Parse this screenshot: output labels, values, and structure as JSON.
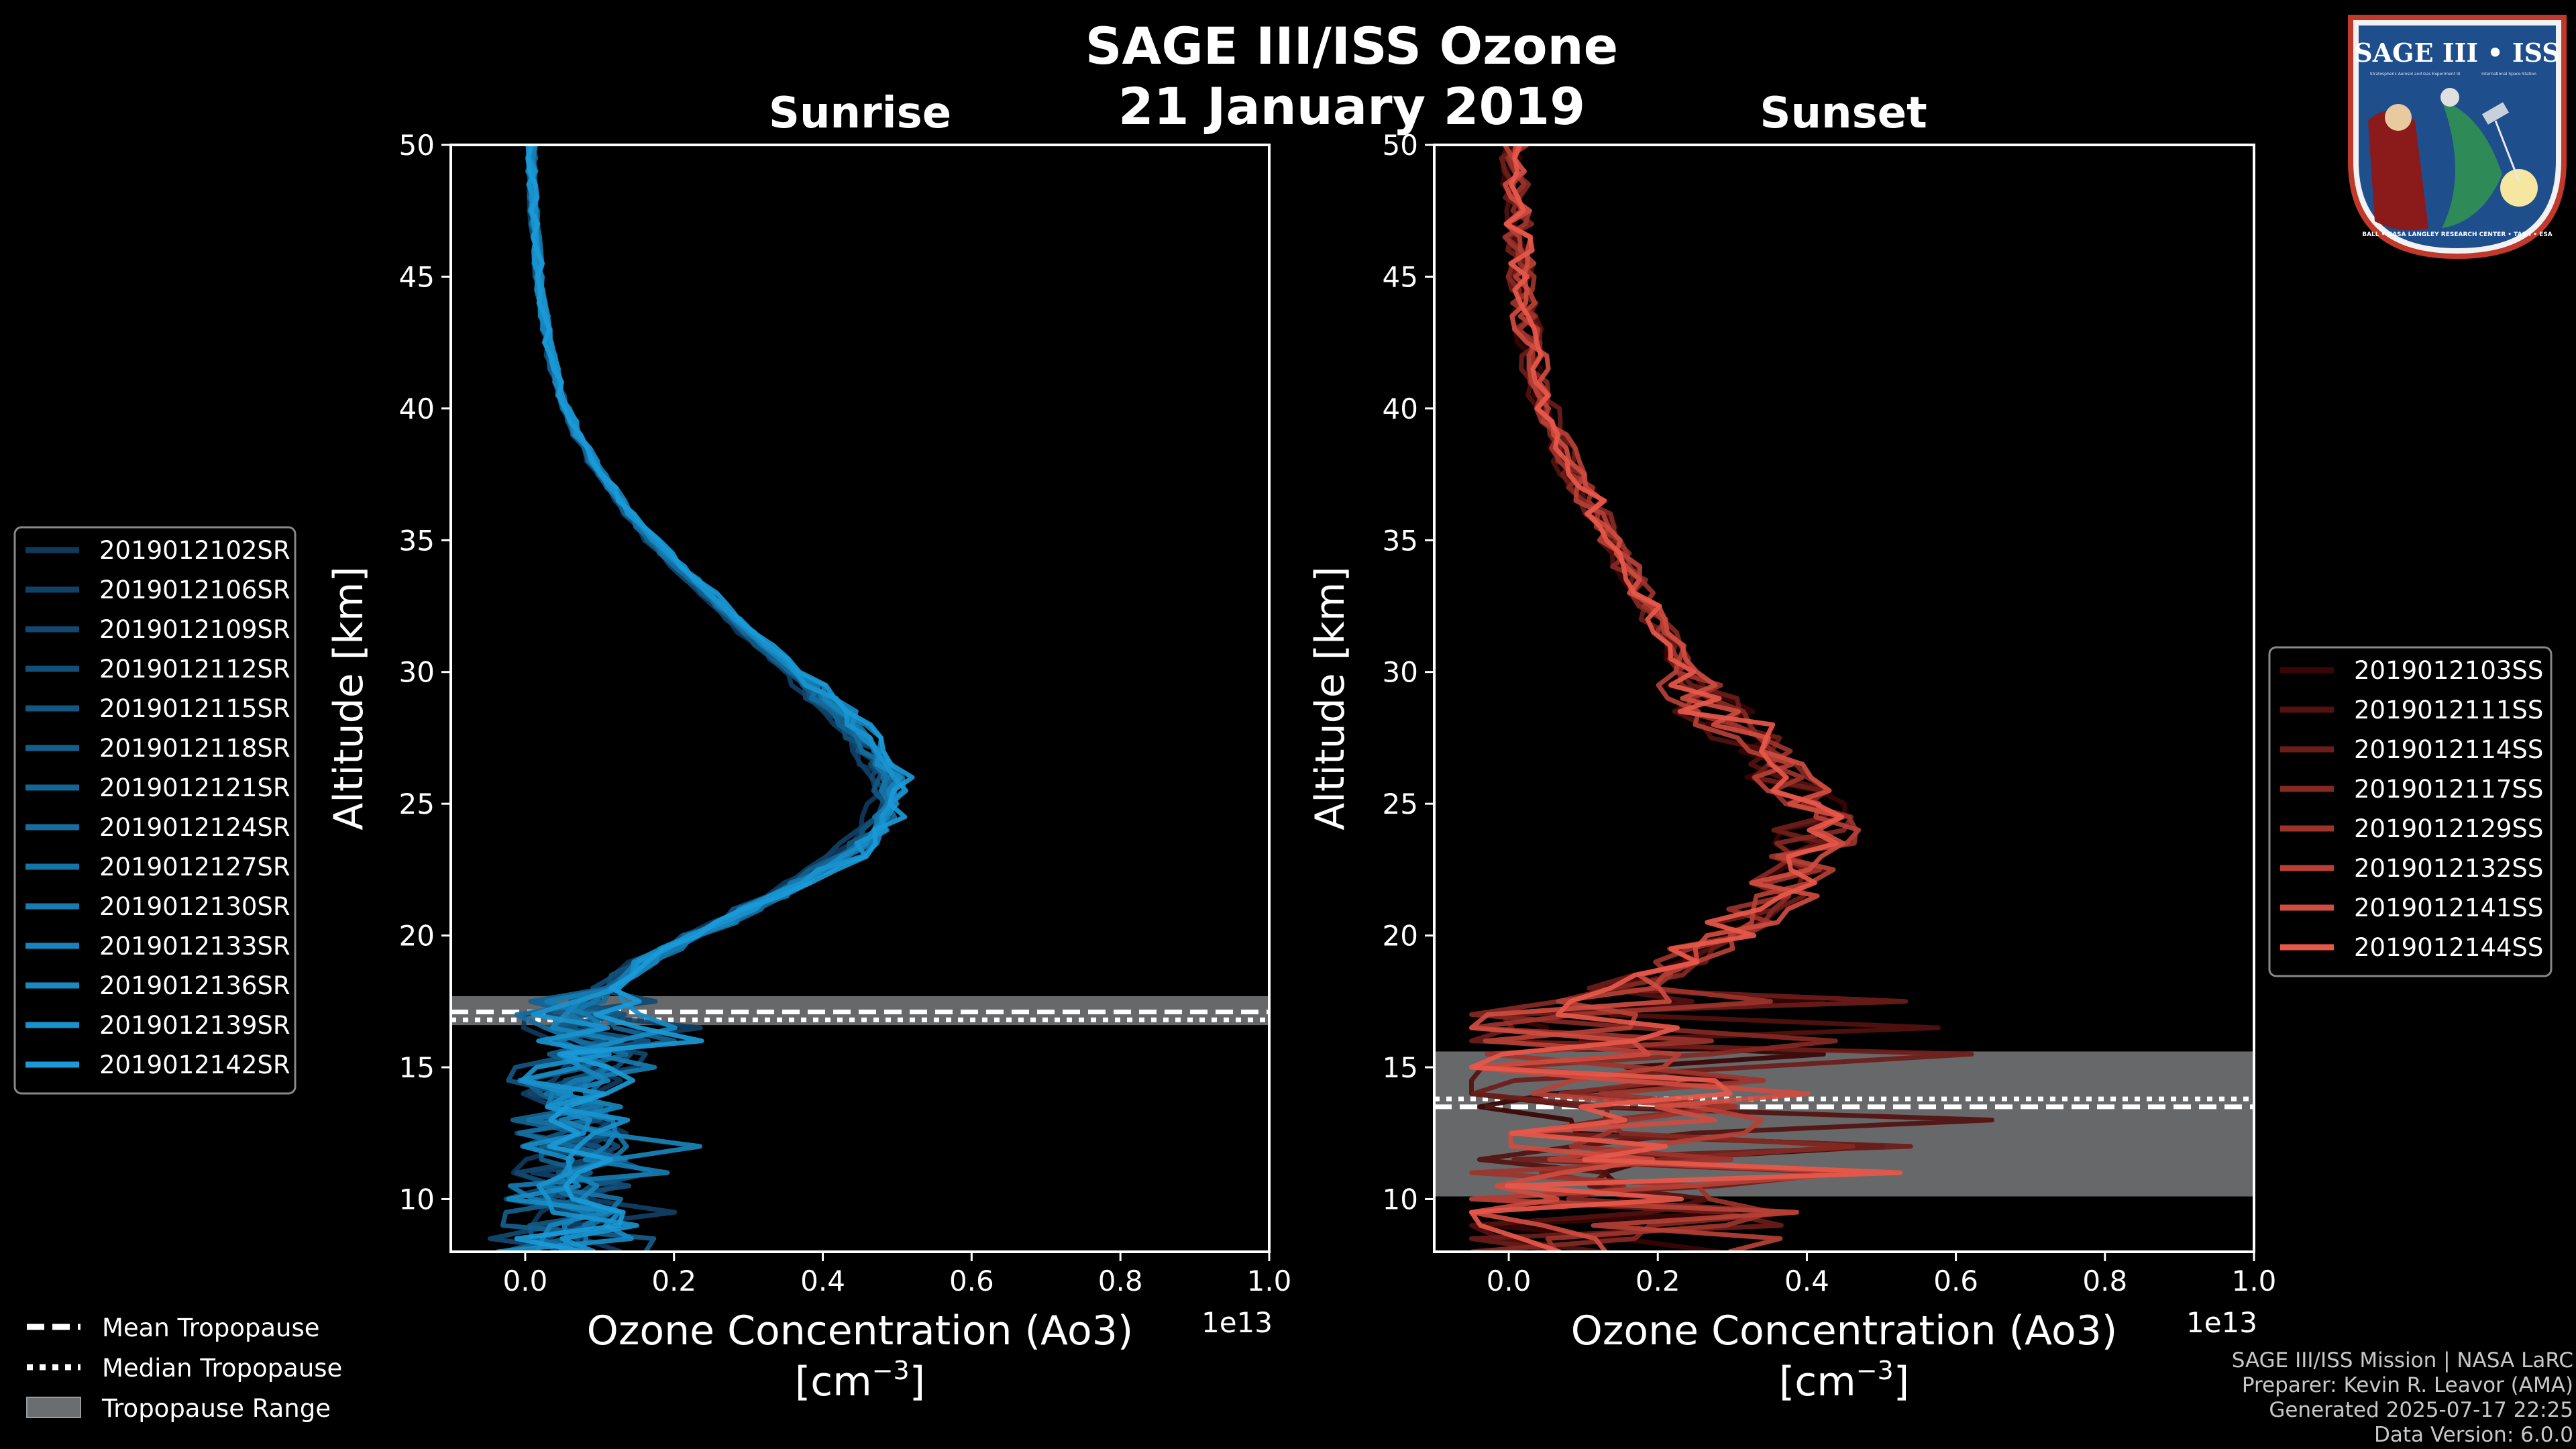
{
  "figure": {
    "title_line1": "SAGE III/ISS Ozone",
    "title_line2": "21 January 2019",
    "badge": {
      "name": "SAGE III • ISS",
      "subtitle_left": "Stratospheric Aerosol and Gas Experiment III",
      "subtitle_right": "International Space Station",
      "ring_text": "BALL • NASA LANGLEY RESEARCH CENTER • TAS-I • ESA"
    },
    "credits": [
      "SAGE III/ISS Mission | NASA LaRC",
      "Preparer: Kevin R. Leavor (AMA)",
      "Generated 2025-07-17 22:25",
      "Data Version: 6.0.0"
    ],
    "tropopause_legend": {
      "mean": "Mean Tropopause",
      "median": "Median Tropopause",
      "range": "Tropopause Range"
    },
    "colors": {
      "background": "#000000",
      "sunrise": "#1a9ad8",
      "sunset": "#e8584a",
      "tropopause_band": "#6b6e70"
    }
  },
  "chart_data": [
    {
      "type": "line",
      "title": "Sunrise",
      "xlabel": "Ozone Concentration (Ao3)",
      "xlabel_units_prefix": "[cm",
      "xlabel_units_exp": "−3",
      "xlabel_units_suffix": "]",
      "ylabel": "Altitude [km]",
      "x_offset_label": "1e13",
      "xlim": [
        -0.1,
        1.0
      ],
      "ylim": [
        8,
        50
      ],
      "xticks": [
        "0.0",
        "0.2",
        "0.4",
        "0.6",
        "0.8",
        "1.0"
      ],
      "yticks": [
        "10",
        "15",
        "20",
        "25",
        "30",
        "35",
        "40",
        "45",
        "50"
      ],
      "tropopause": {
        "mean": 17.1,
        "median": 16.8,
        "min": 16.6,
        "max": 17.7
      },
      "series_names": [
        "2019012102SR",
        "2019012106SR",
        "2019012109SR",
        "2019012112SR",
        "2019012115SR",
        "2019012118SR",
        "2019012121SR",
        "2019012124SR",
        "2019012127SR",
        "2019012130SR",
        "2019012133SR",
        "2019012136SR",
        "2019012139SR",
        "2019012142SR"
      ],
      "mean_profile": {
        "altitude": [
          8,
          9,
          10,
          11,
          12,
          13,
          14,
          15,
          16,
          17,
          18,
          19,
          20,
          21,
          22,
          23,
          24,
          25,
          26,
          27,
          28,
          29,
          30,
          31,
          32,
          33,
          34,
          35,
          36,
          37,
          38,
          39,
          40,
          41,
          42,
          43,
          44,
          45,
          46,
          47,
          48,
          49,
          50
        ],
        "ozone": [
          0.05,
          0.05,
          0.05,
          0.05,
          0.06,
          0.06,
          0.06,
          0.07,
          0.08,
          0.08,
          0.11,
          0.16,
          0.23,
          0.3,
          0.37,
          0.43,
          0.47,
          0.49,
          0.49,
          0.47,
          0.44,
          0.4,
          0.36,
          0.32,
          0.28,
          0.245,
          0.205,
          0.17,
          0.14,
          0.115,
          0.09,
          0.07,
          0.055,
          0.043,
          0.034,
          0.028,
          0.023,
          0.019,
          0.016,
          0.013,
          0.011,
          0.009,
          0.008
        ]
      }
    },
    {
      "type": "line",
      "title": "Sunset",
      "xlabel": "Ozone Concentration (Ao3)",
      "xlabel_units_prefix": "[cm",
      "xlabel_units_exp": "−3",
      "xlabel_units_suffix": "]",
      "ylabel": "Altitude [km]",
      "x_offset_label": "1e13",
      "xlim": [
        -0.1,
        1.0
      ],
      "ylim": [
        8,
        50
      ],
      "xticks": [
        "0.0",
        "0.2",
        "0.4",
        "0.6",
        "0.8",
        "1.0"
      ],
      "yticks": [
        "10",
        "15",
        "20",
        "25",
        "30",
        "35",
        "40",
        "45",
        "50"
      ],
      "tropopause": {
        "mean": 13.5,
        "median": 13.8,
        "min": 10.1,
        "max": 15.6
      },
      "series_names": [
        "2019012103SS",
        "2019012111SS",
        "2019012114SS",
        "2019012117SS",
        "2019012129SS",
        "2019012132SS",
        "2019012141SS",
        "2019012144SS"
      ],
      "mean_profile": {
        "altitude": [
          8,
          9,
          10,
          11,
          12,
          13,
          14,
          15,
          16,
          17,
          18,
          19,
          20,
          21,
          22,
          23,
          24,
          25,
          26,
          27,
          28,
          29,
          30,
          31,
          32,
          33,
          34,
          35,
          36,
          37,
          38,
          39,
          40,
          41,
          42,
          43,
          44,
          45,
          46,
          47,
          48,
          49,
          50
        ],
        "ozone": [
          0.07,
          0.08,
          0.09,
          0.09,
          0.09,
          0.08,
          0.08,
          0.09,
          0.1,
          0.12,
          0.16,
          0.22,
          0.29,
          0.34,
          0.38,
          0.41,
          0.42,
          0.41,
          0.38,
          0.34,
          0.3,
          0.27,
          0.24,
          0.22,
          0.2,
          0.18,
          0.16,
          0.14,
          0.12,
          0.1,
          0.08,
          0.065,
          0.05,
          0.04,
          0.032,
          0.026,
          0.021,
          0.017,
          0.014,
          0.012,
          0.01,
          0.008,
          0.007
        ]
      }
    }
  ]
}
